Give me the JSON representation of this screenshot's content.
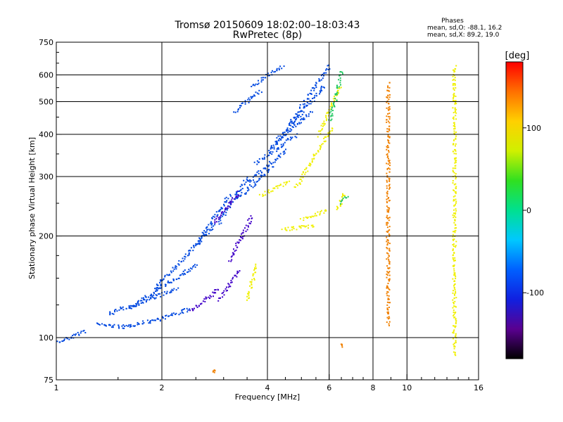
{
  "chart_data": {
    "type": "scatter",
    "title": "Tromsø 20150609 18:02:00–18:03:43",
    "subtitle": "RwPretec (8p)",
    "stats_header": "Phases",
    "stats_lines": [
      "mean, sd,O: -88.1, 16.2",
      "mean, sd,X:  89.2, 19.0"
    ],
    "xlabel": "Frequency [MHz]",
    "ylabel": "Stationary phase Virtual Height [km]",
    "x_scale": "log",
    "y_scale": "log",
    "xlim": [
      1,
      16
    ],
    "ylim": [
      75,
      750
    ],
    "x_ticks": [
      1,
      2,
      4,
      6,
      8,
      10,
      16
    ],
    "x_tick_labels": [
      "1",
      "2",
      "4",
      "6",
      "8",
      "10",
      "16"
    ],
    "y_ticks": [
      75,
      100,
      200,
      300,
      400,
      500,
      600,
      750
    ],
    "y_tick_labels": [
      "75",
      "100",
      "200",
      "300",
      "400",
      "500",
      "600",
      "750"
    ],
    "x_minor_ticks": [
      1.5,
      2.5,
      3,
      3.5,
      4.5,
      5,
      5.5,
      6.5,
      7,
      7.5,
      9,
      11,
      12,
      13,
      14,
      15
    ],
    "y_minor_ticks": [
      125,
      150,
      175,
      250,
      350,
      450,
      550,
      650,
      700
    ],
    "grid": true,
    "colorbar": {
      "label": "[deg]",
      "range": [
        -180,
        180
      ],
      "ticks": [
        100,
        0,
        -100
      ],
      "tick_labels": [
        "100",
        "0",
        "-100"
      ],
      "colors": [
        "#000000",
        "#5a0090",
        "#1020e0",
        "#0060ff",
        "#00c8ff",
        "#00e090",
        "#30e020",
        "#d0f000",
        "#ffd000",
        "#ff7000",
        "#ff0000"
      ]
    },
    "series": [
      {
        "phase_deg": -105,
        "color": "#0048e0",
        "traces": [
          {
            "f": [
              1.0,
              1.2
            ],
            "h": [
              97,
              105
            ]
          },
          {
            "f": [
              1.3,
              1.55
            ],
            "h": [
              110,
              108
            ]
          },
          {
            "f": [
              1.55,
              1.95
            ],
            "h": [
              108,
              114
            ]
          },
          {
            "f": [
              1.95,
              2.4
            ],
            "h": [
              114,
              122
            ]
          },
          {
            "f": [
              1.4,
              2.2
            ],
            "h": [
              118,
              140
            ]
          },
          {
            "f": [
              1.6,
              2.5
            ],
            "h": [
              122,
              165
            ]
          },
          {
            "f": [
              1.9,
              2.8
            ],
            "h": [
              140,
              215
            ]
          },
          {
            "f": [
              2.5,
              3.1
            ],
            "h": [
              190,
              265
            ]
          },
          {
            "f": [
              2.9,
              3.5
            ],
            "h": [
              220,
              300
            ]
          },
          {
            "f": [
              3.3,
              4.1
            ],
            "h": [
              260,
              320
            ]
          },
          {
            "f": [
              3.5,
              4.5
            ],
            "h": [
              290,
              360
            ]
          },
          {
            "f": [
              3.7,
              4.8
            ],
            "h": [
              330,
              400
            ]
          },
          {
            "f": [
              4.0,
              5.3
            ],
            "h": [
              360,
              470
            ]
          },
          {
            "f": [
              4.2,
              5.8
            ],
            "h": [
              380,
              560
            ]
          },
          {
            "f": [
              4.6,
              6.0
            ],
            "h": [
              430,
              640
            ]
          },
          {
            "f": [
              3.2,
              3.8
            ],
            "h": [
              470,
              540
            ]
          },
          {
            "f": [
              3.6,
              4.4
            ],
            "h": [
              560,
              640
            ]
          }
        ]
      },
      {
        "phase_deg": -130,
        "color": "#4000c8",
        "traces": [
          {
            "f": [
              2.8,
              3.3
            ],
            "h": [
              220,
              270
            ]
          },
          {
            "f": [
              3.1,
              3.6
            ],
            "h": [
              170,
              230
            ]
          },
          {
            "f": [
              2.4,
              2.9
            ],
            "h": [
              120,
              140
            ]
          },
          {
            "f": [
              2.9,
              3.3
            ],
            "h": [
              130,
              160
            ]
          }
        ]
      },
      {
        "phase_deg": 100,
        "color": "#f0f000",
        "traces": [
          {
            "f": [
              3.5,
              3.7
            ],
            "h": [
              130,
              165
            ]
          },
          {
            "f": [
              3.8,
              4.6
            ],
            "h": [
              265,
              290
            ]
          },
          {
            "f": [
              4.4,
              5.4
            ],
            "h": [
              210,
              215
            ]
          },
          {
            "f": [
              5.0,
              5.9
            ],
            "h": [
              225,
              240
            ]
          },
          {
            "f": [
              4.8,
              6.1
            ],
            "h": [
              280,
              420
            ]
          },
          {
            "f": [
              5.6,
              6.4
            ],
            "h": [
              400,
              560
            ]
          },
          {
            "f": [
              6.3,
              6.6
            ],
            "h": [
              240,
              270
            ]
          },
          {
            "f": [
              13.6,
              13.6
            ],
            "h": [
              90,
              640
            ]
          }
        ]
      },
      {
        "phase_deg": 30,
        "color": "#20c860",
        "traces": [
          {
            "f": [
              6.0,
              6.5
            ],
            "h": [
              440,
              620
            ]
          },
          {
            "f": [
              6.4,
              6.7
            ],
            "h": [
              250,
              265
            ]
          }
        ]
      },
      {
        "phase_deg": 150,
        "color": "#f08000",
        "traces": [
          {
            "f": [
              2.8,
              2.8
            ],
            "h": [
              80,
              80
            ]
          },
          {
            "f": [
              6.5,
              6.5
            ],
            "h": [
              95,
              95
            ]
          },
          {
            "f": [
              8.8,
              8.8
            ],
            "h": [
              110,
              570
            ]
          }
        ]
      }
    ]
  }
}
